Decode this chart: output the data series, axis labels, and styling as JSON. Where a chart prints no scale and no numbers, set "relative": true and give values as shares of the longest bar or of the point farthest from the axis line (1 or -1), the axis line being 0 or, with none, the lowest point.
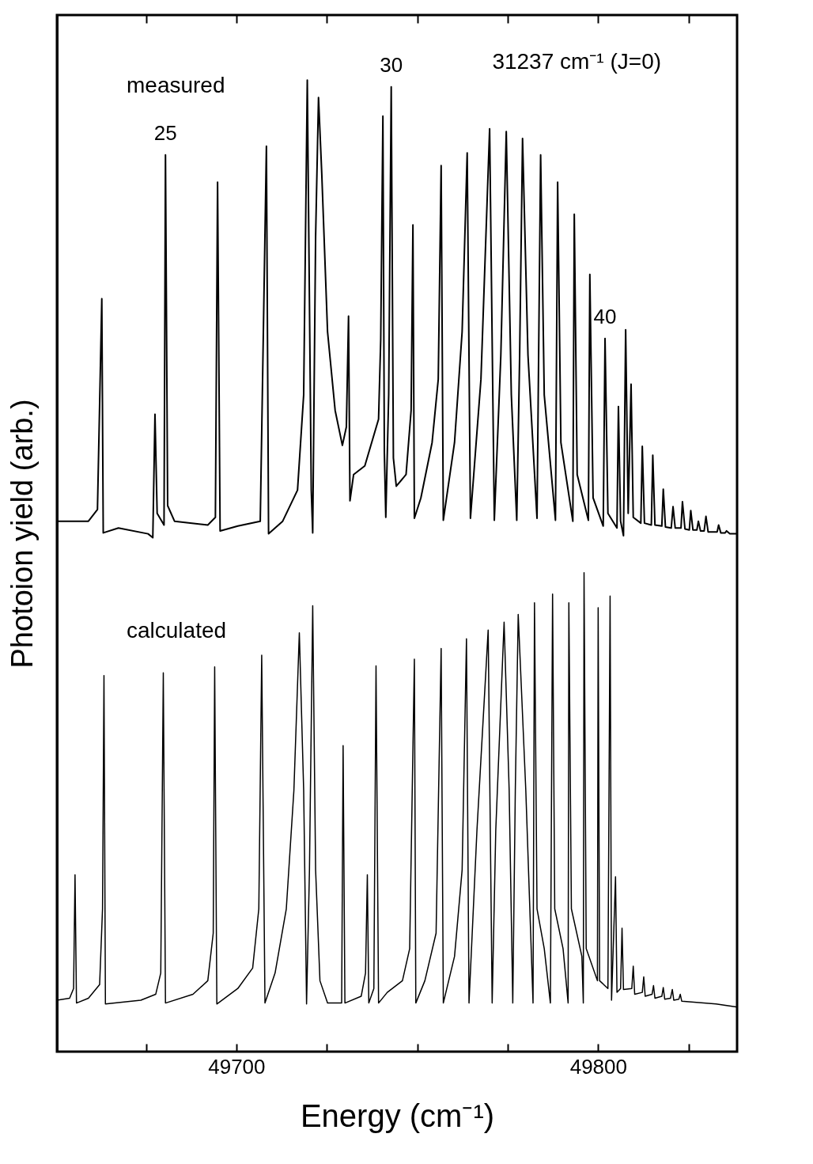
{
  "chart_data": {
    "type": "line",
    "relative": true,
    "xlabel": "Energy (cm⁻¹)",
    "ylabel": "Photoion yield (arb.)",
    "xlim": [
      49650.4,
      49838.4
    ],
    "xticks": [
      {
        "value": 49675,
        "label": null
      },
      49700,
      {
        "value": 49725,
        "label": null
      },
      {
        "value": 49750,
        "label": null
      },
      {
        "value": 49775,
        "label": null
      },
      49800,
      {
        "value": 49825,
        "label": null
      }
    ],
    "grid": false,
    "legend": false,
    "annotations": [
      "31237 cm⁻¹ (J=0)",
      {
        "text": "25",
        "x": 49680.4,
        "y": 0.923
      },
      {
        "text": "30",
        "x": 49742.8,
        "y": 0.993
      },
      {
        "text": "40",
        "x": 49801.9,
        "y": 0.734
      }
    ],
    "series": [
      {
        "name": "measured",
        "color": "#000000",
        "x": [
          49650.4,
          49659.1,
          49661.6,
          49662.8,
          49663.2,
          49667.4,
          49675.6,
          49676.9,
          49677.5,
          49678.1,
          49680.0,
          49680.4,
          49681.0,
          49682.9,
          49692.1,
          49694.2,
          49694.8,
          49695.5,
          49700.4,
          49706.6,
          49708.3,
          49708.9,
          49712.8,
          49716.9,
          49718.6,
          49719.6,
          49720.7,
          49721.1,
          49721.9,
          49722.7,
          49723.6,
          49725.2,
          49727.3,
          49729.3,
          49730.4,
          49731.0,
          49731.4,
          49732.4,
          49735.5,
          49739.3,
          49739.9,
          49740.5,
          49740.9,
          49741.3,
          49742.1,
          49742.8,
          49743.4,
          49744.2,
          49746.9,
          49748.3,
          49748.8,
          49749.2,
          49751.0,
          49754.1,
          49755.8,
          49756.6,
          49757.2,
          49760.3,
          49762.4,
          49763.8,
          49764.7,
          49767.6,
          49770.0,
          49771.3,
          49773.1,
          49774.6,
          49776.0,
          49777.5,
          49778.3,
          49779.1,
          49780.6,
          49783.1,
          49784.1,
          49785.1,
          49788.2,
          49788.8,
          49789.7,
          49793.0,
          49793.4,
          49794.2,
          49797.3,
          49797.7,
          49798.6,
          49801.4,
          49801.9,
          49802.7,
          49805.2,
          49805.6,
          49806.2,
          49807.0,
          49807.6,
          49808.3,
          49809.1,
          49809.7,
          49811.8,
          49812.2,
          49812.8,
          49814.7,
          49815.1,
          49815.7,
          49817.6,
          49818.0,
          49818.6,
          49820.2,
          49820.7,
          49821.3,
          49822.9,
          49823.3,
          49824.0,
          49825.2,
          49825.6,
          49826.2,
          49827.3,
          49827.7,
          49828.3,
          49829.3,
          49829.8,
          49830.4,
          49832.9,
          49833.3,
          49833.9,
          49835.1,
          49835.5,
          49836.4,
          49838.2
        ],
        "values": [
          0.546,
          0.546,
          0.558,
          0.775,
          0.534,
          0.539,
          0.533,
          0.529,
          0.656,
          0.554,
          0.542,
          0.923,
          0.562,
          0.546,
          0.542,
          0.55,
          0.895,
          0.536,
          0.541,
          0.546,
          0.932,
          0.533,
          0.546,
          0.578,
          0.676,
          1,
          0.578,
          0.534,
          0.839,
          0.982,
          0.904,
          0.741,
          0.66,
          0.624,
          0.643,
          0.757,
          0.567,
          0.594,
          0.603,
          0.651,
          0.733,
          0.963,
          0.617,
          0.55,
          0.676,
          0.993,
          0.611,
          0.582,
          0.594,
          0.66,
          0.851,
          0.549,
          0.57,
          0.627,
          0.692,
          0.912,
          0.547,
          0.627,
          0.741,
          0.925,
          0.549,
          0.692,
          0.95,
          0.547,
          0.717,
          0.947,
          0.676,
          0.547,
          0.717,
          0.94,
          0.717,
          0.549,
          0.923,
          0.676,
          0.547,
          0.895,
          0.627,
          0.546,
          0.862,
          0.594,
          0.547,
          0.8,
          0.57,
          0.541,
          0.734,
          0.554,
          0.539,
          0.664,
          0.546,
          0.531,
          0.743,
          0.554,
          0.687,
          0.55,
          0.544,
          0.623,
          0.544,
          0.542,
          0.614,
          0.542,
          0.541,
          0.579,
          0.54,
          0.539,
          0.561,
          0.539,
          0.539,
          0.566,
          0.538,
          0.537,
          0.557,
          0.537,
          0.537,
          0.546,
          0.536,
          0.536,
          0.551,
          0.535,
          0.535,
          0.542,
          0.534,
          0.534,
          0.536,
          0.533,
          0.533
        ]
      },
      {
        "name": "calculated",
        "color": "#000000",
        "x": [
          49650.4,
          49653.9,
          49655.0,
          49655.4,
          49655.8,
          49659.1,
          49662.2,
          49663.0,
          49663.4,
          49663.8,
          49673.6,
          49677.7,
          49679.1,
          49679.8,
          49680.4,
          49688.0,
          49692.1,
          49693.6,
          49694.0,
          49694.6,
          49700.4,
          49704.5,
          49706.2,
          49707.0,
          49707.9,
          49710.7,
          49713.8,
          49715.9,
          49717.4,
          49718.6,
          49719.4,
          49720.2,
          49721.1,
          49721.9,
          49723.1,
          49725.2,
          49729.1,
          49729.5,
          49730.0,
          49734.5,
          49735.7,
          49736.2,
          49736.6,
          49738.0,
          49738.6,
          49739.3,
          49741.7,
          49745.9,
          49747.9,
          49749.2,
          49749.6,
          49752.1,
          49755.2,
          49756.6,
          49757.2,
          49760.3,
          49762.4,
          49763.6,
          49764.3,
          49766.5,
          49769.6,
          49770.7,
          49771.7,
          49774.0,
          49775.4,
          49776.4,
          49777.1,
          49777.9,
          49780.0,
          49782.0,
          49782.4,
          49783.1,
          49785.1,
          49786.8,
          49787.4,
          49788.0,
          49790.3,
          49791.7,
          49791.9,
          49792.6,
          49795.5,
          49795.9,
          49796.1,
          49796.7,
          49799.8,
          49800.0,
          49800.4,
          49802.7,
          49803.3,
          49803.7,
          49804.8,
          49805.2,
          49806.2,
          49806.6,
          49807.0,
          49809.3,
          49809.7,
          49810.1,
          49812.2,
          49812.6,
          49813.0,
          49814.9,
          49815.3,
          49815.7,
          49817.6,
          49818.0,
          49818.4,
          49820.0,
          49820.5,
          49820.9,
          49822.3,
          49822.7,
          49823.1,
          49832.6,
          49838.2
        ],
        "values": [
          0.053,
          0.055,
          0.065,
          0.182,
          0.05,
          0.055,
          0.069,
          0.147,
          0.387,
          0.049,
          0.053,
          0.059,
          0.081,
          0.39,
          0.05,
          0.059,
          0.073,
          0.122,
          0.396,
          0.049,
          0.065,
          0.086,
          0.147,
          0.408,
          0.05,
          0.081,
          0.147,
          0.269,
          0.431,
          0.269,
          0.049,
          0.187,
          0.459,
          0.187,
          0.073,
          0.05,
          0.05,
          0.315,
          0.05,
          0.057,
          0.081,
          0.182,
          0.05,
          0.065,
          0.397,
          0.05,
          0.061,
          0.073,
          0.106,
          0.404,
          0.05,
          0.073,
          0.122,
          0.415,
          0.05,
          0.098,
          0.187,
          0.425,
          0.05,
          0.228,
          0.434,
          0.05,
          0.228,
          0.442,
          0.269,
          0.05,
          0.269,
          0.45,
          0.269,
          0.05,
          0.462,
          0.147,
          0.106,
          0.05,
          0.471,
          0.147,
          0.106,
          0.05,
          0.462,
          0.147,
          0.098,
          0.05,
          0.493,
          0.106,
          0.073,
          0.457,
          0.073,
          0.065,
          0.469,
          0.053,
          0.18,
          0.061,
          0.065,
          0.127,
          0.064,
          0.065,
          0.088,
          0.059,
          0.061,
          0.077,
          0.057,
          0.059,
          0.068,
          0.055,
          0.057,
          0.066,
          0.054,
          0.055,
          0.064,
          0.053,
          0.054,
          0.059,
          0.052,
          0.049,
          0.046
        ]
      }
    ]
  }
}
